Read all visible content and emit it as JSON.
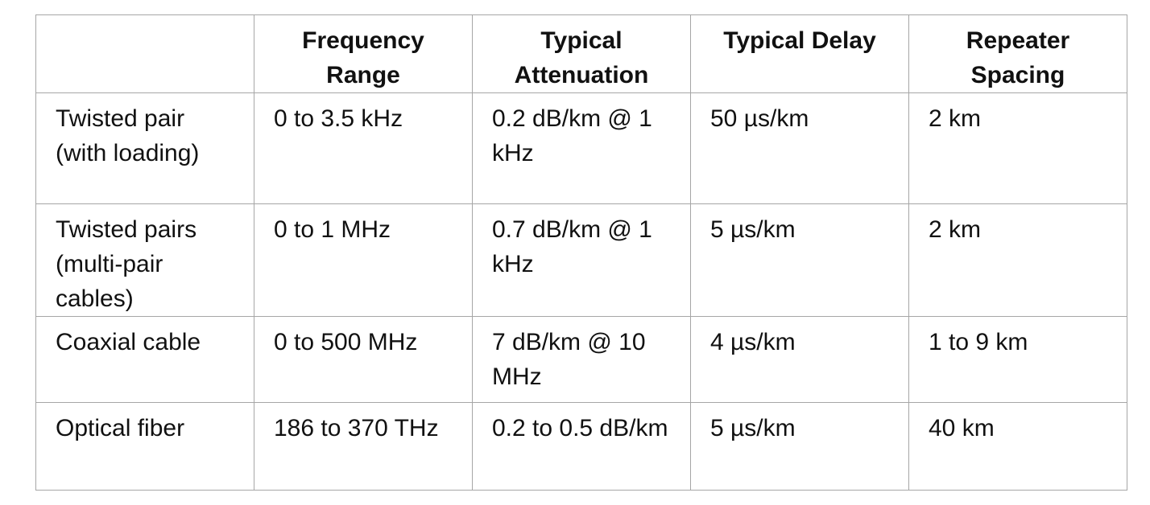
{
  "table": {
    "headers": [
      "",
      "Frequency Range",
      "Typical Attenuation",
      "Typical Delay",
      "Repeater Spacing"
    ],
    "rows": [
      [
        "Twisted pair (with loading)",
        "0 to 3.5 kHz",
        "0.2 dB/km @ 1 kHz",
        "50 µs/km",
        "2 km"
      ],
      [
        "Twisted pairs (multi-pair cables)",
        "0 to 1 MHz",
        "0.7 dB/km @ 1 kHz",
        "5 µs/km",
        "2 km"
      ],
      [
        "Coaxial cable",
        "0 to 500 MHz",
        "7 dB/km @ 10 MHz",
        "4 µs/km",
        "1 to 9 km"
      ],
      [
        "Optical fiber",
        "186 to 370 THz",
        "0.2 to 0.5 dB/km",
        "5 µs/km",
        "40 km"
      ]
    ]
  }
}
